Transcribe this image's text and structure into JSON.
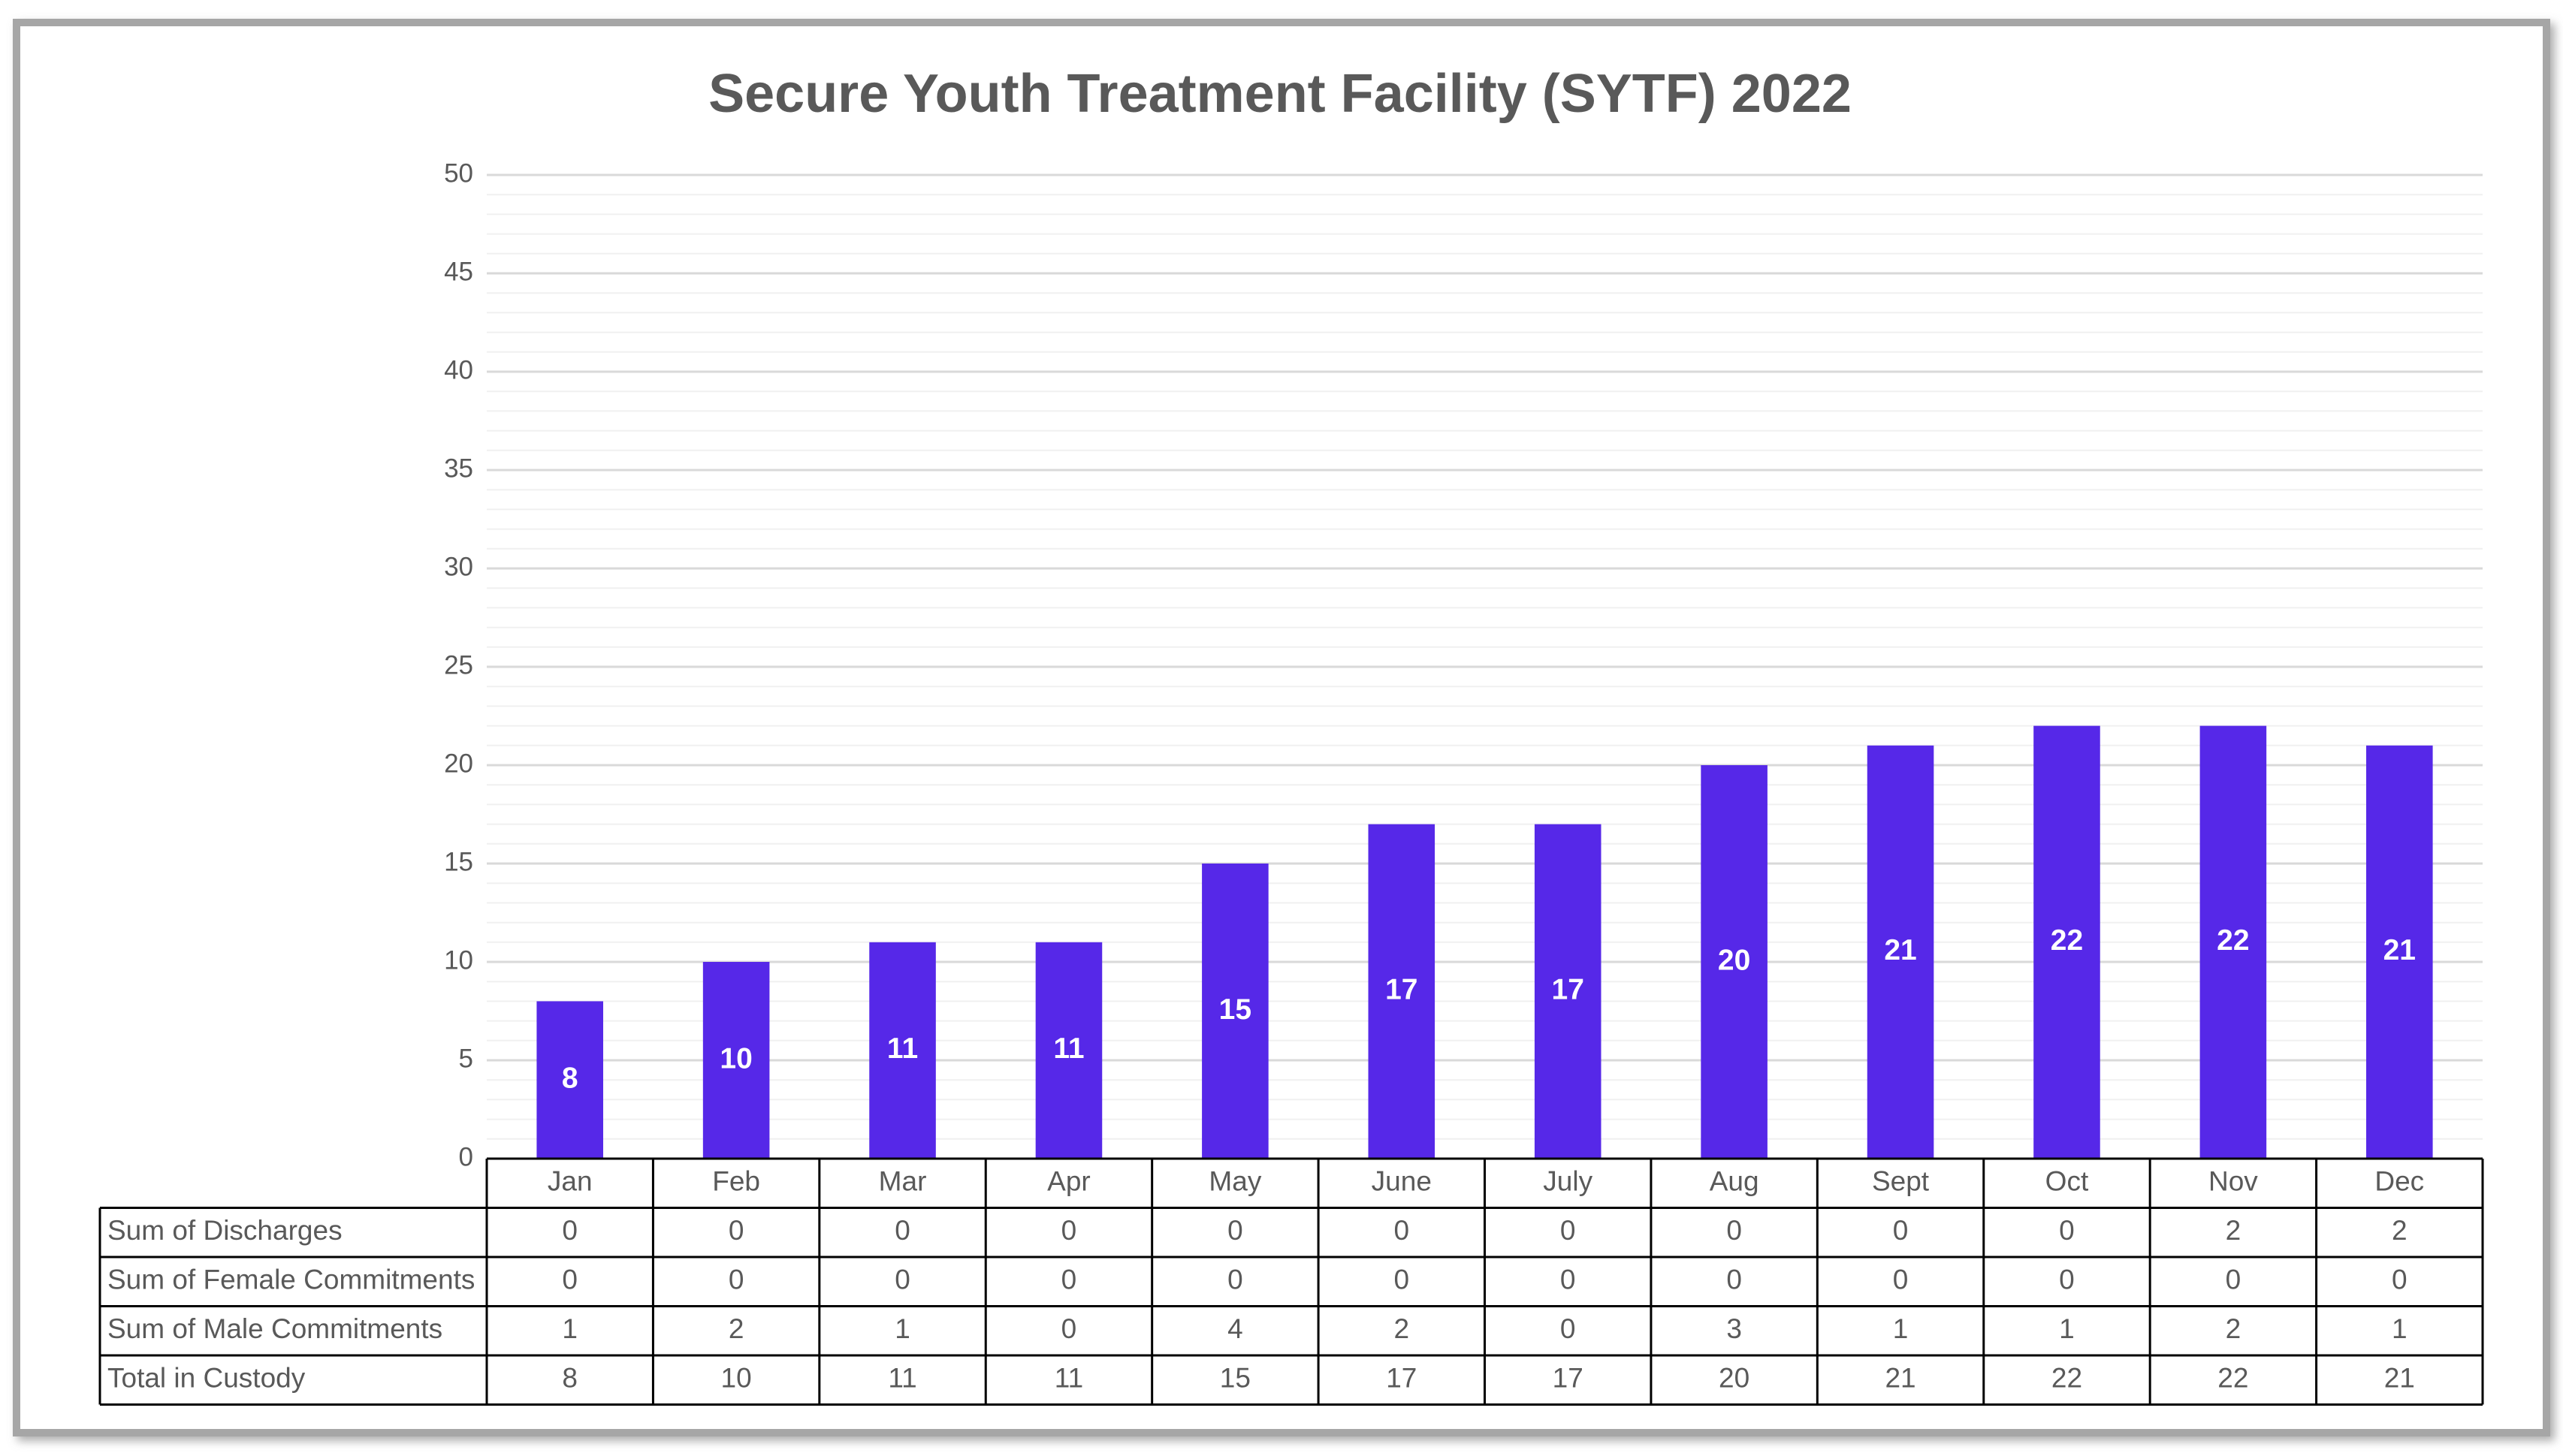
{
  "chart_data": {
    "type": "bar",
    "title": "Secure Youth Treatment Facility (SYTF) 2022",
    "categories": [
      "Jan",
      "Feb",
      "Mar",
      "Apr",
      "May",
      "June",
      "July",
      "Aug",
      "Sept",
      "Oct",
      "Nov",
      "Dec"
    ],
    "series": [
      {
        "name": "Sum of Discharges",
        "values": [
          0,
          0,
          0,
          0,
          0,
          0,
          0,
          0,
          0,
          0,
          2,
          2
        ]
      },
      {
        "name": "Sum of Female Commitments",
        "values": [
          0,
          0,
          0,
          0,
          0,
          0,
          0,
          0,
          0,
          0,
          0,
          0
        ]
      },
      {
        "name": "Sum of Male Commitments",
        "values": [
          1,
          2,
          1,
          0,
          4,
          2,
          0,
          3,
          1,
          1,
          2,
          1
        ]
      },
      {
        "name": "Total in Custody",
        "color": "#5628e8",
        "values": [
          8,
          10,
          11,
          11,
          15,
          17,
          17,
          20,
          21,
          22,
          22,
          21
        ],
        "data_labels": true
      }
    ],
    "ylim": [
      0,
      50
    ],
    "yticks": [
      0,
      5,
      10,
      15,
      20,
      25,
      30,
      35,
      40,
      45,
      50
    ],
    "grid": true,
    "minor_grid": true,
    "data_table": true
  }
}
